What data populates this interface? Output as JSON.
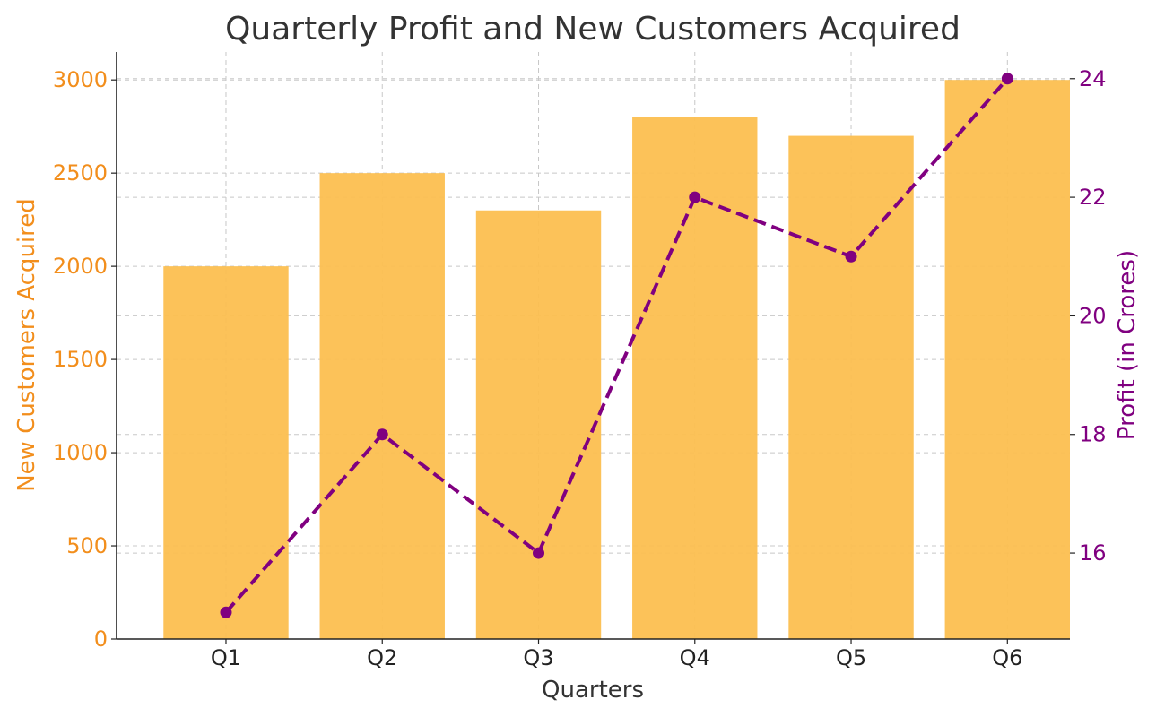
{
  "chart_data": {
    "type": "bar",
    "title": "Quarterly Profit and New Customers Acquired",
    "xlabel": "Quarters",
    "categories": [
      "Q1",
      "Q2",
      "Q3",
      "Q4",
      "Q5",
      "Q6"
    ],
    "series": [
      {
        "name": "New Customers Acquired",
        "type": "bar",
        "axis": "left",
        "color": "#fcbf50",
        "values": [
          2000,
          2500,
          2300,
          2800,
          2700,
          3000
        ]
      },
      {
        "name": "Profit (in Crores)",
        "type": "line",
        "axis": "right",
        "color": "#800080",
        "line_style": "dashed",
        "marker": "circle",
        "values": [
          15,
          18,
          16,
          22,
          21,
          24
        ]
      }
    ],
    "y_left": {
      "label": "New Customers Acquired",
      "color": "#f28e1c",
      "range": [
        0,
        3150
      ],
      "ticks": [
        0,
        500,
        1000,
        1500,
        2000,
        2500,
        3000
      ]
    },
    "y_right": {
      "label": "Profit (in Crores)",
      "color": "#800080",
      "range": [
        14.55,
        24.45
      ],
      "ticks": [
        16,
        18,
        20,
        22,
        24
      ]
    },
    "grid": true,
    "grid_style": "dashed"
  }
}
